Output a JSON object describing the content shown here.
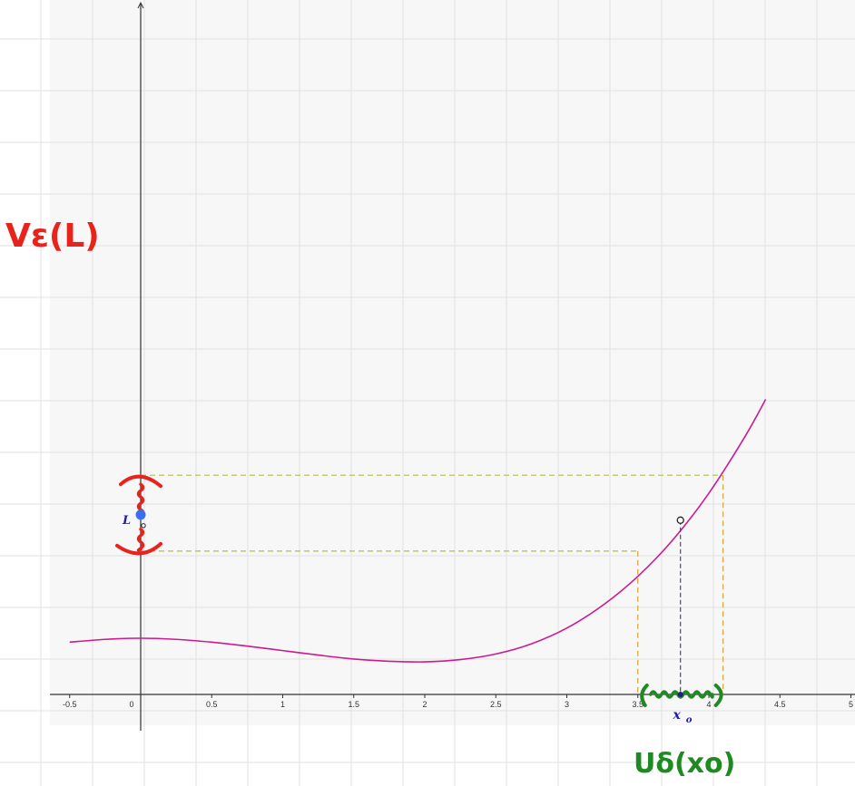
{
  "chart_data": {
    "type": "line",
    "title": "",
    "xlabel": "",
    "ylabel": "",
    "xlim": [
      -0.55,
      5.05
    ],
    "x_ticks": [
      "-0.5",
      "0",
      "0.5",
      "1",
      "1.5",
      "2",
      "2.5",
      "3",
      "3.5",
      "4",
      "4.5",
      "5"
    ],
    "grid": true,
    "curve": {
      "color": "#cc1a8f",
      "x": [
        -0.5,
        -0.25,
        0,
        0.25,
        0.5,
        0.75,
        1,
        1.25,
        1.5,
        1.75,
        2,
        2.25,
        2.5,
        2.75,
        3,
        3.25,
        3.5,
        3.75,
        4,
        4.25,
        4.4
      ],
      "y": [
        0.93,
        0.98,
        1.0,
        0.98,
        0.93,
        0.86,
        0.78,
        0.7,
        0.63,
        0.59,
        0.58,
        0.62,
        0.72,
        0.9,
        1.18,
        1.58,
        2.1,
        2.76,
        3.58,
        4.57,
        5.25
      ]
    },
    "x0": 3.8,
    "L": 3.1,
    "x_left_bound": 3.5,
    "x_right_bound": 4.1,
    "y_lower_bound": 2.55,
    "y_upper_bound": 3.9
  },
  "labels": {
    "L": "L",
    "x0": "x",
    "x0_sub": "o",
    "epsilon_neighborhood": "Vε(L)",
    "delta_neighborhood": "Uδ(xo)"
  },
  "colors": {
    "axis": "#333333",
    "grid": "#e2e2e2",
    "guide_dash": "#b5bd4a",
    "guide_dash_inner": "#d9a23a",
    "x0_guide": "#3a3a7a",
    "point_L": "#3a6df0",
    "point_x0": "#1f1f8f",
    "ink_red": "#e8231c",
    "ink_green": "#1f8a22",
    "label_blue": "#1f1fa8"
  }
}
